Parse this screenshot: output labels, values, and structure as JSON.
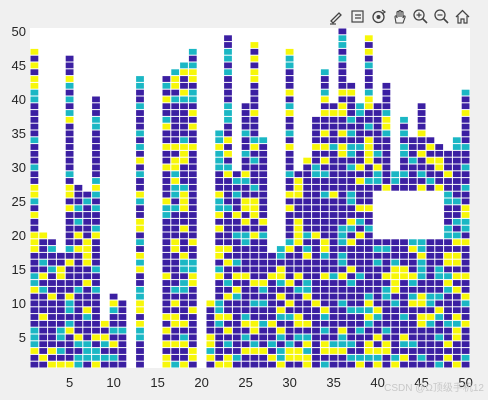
{
  "toolbar": {
    "buttons": [
      {
        "name": "edit-icon"
      },
      {
        "name": "data-tips-icon"
      },
      {
        "name": "rotate-3d-icon"
      },
      {
        "name": "pan-hand-icon"
      },
      {
        "name": "zoom-in-icon"
      },
      {
        "name": "zoom-out-icon"
      },
      {
        "name": "home-icon"
      }
    ]
  },
  "watermark": "CSDN @Ω顶级手机12",
  "chart_data": {
    "type": "heatmap",
    "title": "",
    "xlabel": "",
    "ylabel": "",
    "xlim": [
      0.5,
      50.5
    ],
    "ylim": [
      0.5,
      50.5
    ],
    "xticks": [
      "5",
      "10",
      "15",
      "20",
      "25",
      "30",
      "35",
      "40",
      "45",
      "50"
    ],
    "yticks": [
      "5",
      "10",
      "15",
      "20",
      "25",
      "30",
      "35",
      "40",
      "45",
      "50"
    ],
    "grid": false,
    "colors": {
      "1": "#3b1fa2",
      "2": "#1bb7c4",
      "3": "#f7f70a",
      "empty": "#ffffff",
      "background": "#ffffff"
    },
    "column_heights": [
      47,
      20,
      19,
      17,
      46,
      27,
      26,
      40,
      7,
      11,
      10,
      0,
      43,
      0,
      0,
      43,
      44,
      45,
      47,
      0,
      10,
      35,
      49,
      29,
      39,
      48,
      34,
      17,
      18,
      47,
      29,
      31,
      37,
      44,
      39,
      50,
      42,
      39,
      49,
      39,
      42,
      29,
      37,
      34,
      39,
      34,
      33,
      32,
      34,
      41
    ],
    "gap_region": {
      "x": [
        40,
        47
      ],
      "y": [
        20,
        26
      ]
    },
    "seed": 42
  }
}
